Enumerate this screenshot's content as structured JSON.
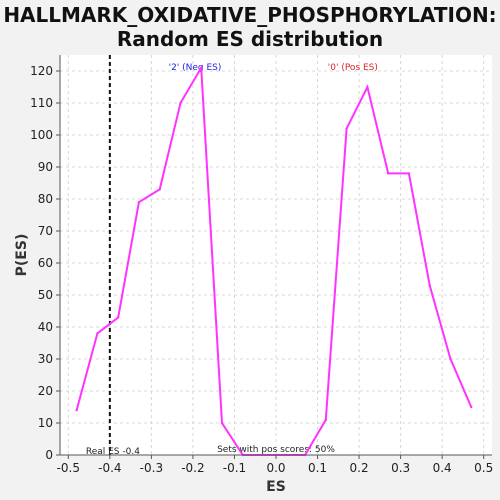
{
  "chart_data": {
    "type": "line",
    "title_lines": [
      "HALLMARK_OXIDATIVE_PHOSPHORYLATION:",
      "Random ES distribution"
    ],
    "xlabel": "ES",
    "ylabel": "P(ES)",
    "xlim": [
      -0.52,
      0.52
    ],
    "ylim": [
      0,
      125
    ],
    "x_ticks": [
      -0.5,
      -0.4,
      -0.3,
      -0.2,
      -0.1,
      0.0,
      0.1,
      0.2,
      0.3,
      0.4,
      0.5
    ],
    "x_tick_labels": [
      "-0.5",
      "-0.4",
      "-0.3",
      "-0.2",
      "-0.1",
      "0.0",
      "0.1",
      "0.2",
      "0.3",
      "0.4",
      "0.5"
    ],
    "y_ticks": [
      0,
      10,
      20,
      30,
      40,
      50,
      60,
      70,
      80,
      90,
      100,
      110,
      120
    ],
    "y_tick_labels": [
      "0",
      "10",
      "20",
      "30",
      "40",
      "50",
      "60",
      "70",
      "80",
      "90",
      "100",
      "110",
      "120"
    ],
    "grid": true,
    "series": [
      {
        "color": "#ff33ff",
        "x": [
          -0.48,
          -0.43,
          -0.38,
          -0.33,
          -0.28,
          -0.23,
          -0.18,
          -0.13,
          -0.08,
          -0.03,
          0.02,
          0.07,
          0.12,
          0.17,
          0.22,
          0.27,
          0.32,
          0.37,
          0.42,
          0.47
        ],
        "y": [
          14,
          38,
          43,
          79,
          83,
          110,
          121,
          10,
          0,
          0,
          0,
          0,
          11,
          102,
          115,
          88,
          88,
          53,
          30,
          15
        ]
      }
    ],
    "real_es": {
      "x": -0.4,
      "label": "Real ES -0.4"
    },
    "annotations": {
      "neg_label": "'2' (Neg ES)",
      "neg_color": "#2222dd",
      "pos_label": "'0' (Pos ES)",
      "pos_color": "#dd2222",
      "pos_scores_text": "Sets with pos scores: 50%"
    }
  }
}
